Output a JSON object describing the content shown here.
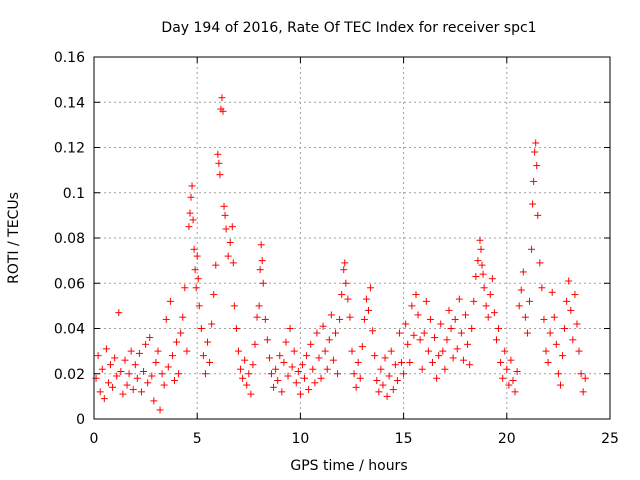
{
  "chart_data": {
    "type": "scatter",
    "title": "Day 194 of 2016, Rate Of TEC Index for receiver spc1",
    "xlabel": "GPS time / hours",
    "ylabel": "ROTI / TECUs",
    "xlim": [
      0,
      25
    ],
    "ylim": [
      0,
      0.16
    ],
    "xticks": [
      0,
      5,
      10,
      15,
      20,
      25
    ],
    "yticks": [
      0,
      0.02,
      0.04,
      0.06,
      0.08,
      0.1,
      0.12,
      0.14,
      0.16
    ],
    "xtick_labels": [
      "0",
      "5",
      "10",
      "15",
      "20",
      "25"
    ],
    "ytick_labels": [
      "0",
      "0.02",
      "0.04",
      "0.06",
      "0.08",
      "0.1",
      "0.12",
      "0.14",
      "0.16"
    ],
    "grid": true,
    "marker": "+",
    "color": "#ff0000",
    "series": [
      {
        "name": "ROTI",
        "points": [
          [
            0.1,
            0.018
          ],
          [
            0.2,
            0.028
          ],
          [
            0.3,
            0.012
          ],
          [
            0.4,
            0.022
          ],
          [
            0.5,
            0.009
          ],
          [
            0.6,
            0.031
          ],
          [
            0.7,
            0.016
          ],
          [
            0.8,
            0.024
          ],
          [
            0.9,
            0.014
          ],
          [
            1.0,
            0.027
          ],
          [
            1.1,
            0.019
          ],
          [
            1.2,
            0.047
          ],
          [
            1.3,
            0.021
          ],
          [
            1.4,
            0.011
          ],
          [
            1.5,
            0.026
          ],
          [
            1.6,
            0.015
          ],
          [
            1.7,
            0.02
          ],
          [
            1.8,
            0.03
          ],
          [
            1.9,
            0.013
          ],
          [
            2.0,
            0.024
          ],
          [
            2.1,
            0.018
          ],
          [
            2.2,
            0.029
          ],
          [
            2.3,
            0.012
          ],
          [
            2.4,
            0.021
          ],
          [
            2.5,
            0.033
          ],
          [
            2.6,
            0.016
          ],
          [
            2.7,
            0.036
          ],
          [
            2.8,
            0.019
          ],
          [
            2.9,
            0.008
          ],
          [
            3.0,
            0.025
          ],
          [
            3.1,
            0.03
          ],
          [
            3.2,
            0.004
          ],
          [
            3.3,
            0.02
          ],
          [
            3.4,
            0.015
          ],
          [
            3.5,
            0.044
          ],
          [
            3.6,
            0.023
          ],
          [
            3.7,
            0.052
          ],
          [
            3.8,
            0.028
          ],
          [
            3.9,
            0.017
          ],
          [
            4.0,
            0.034
          ],
          [
            4.1,
            0.02
          ],
          [
            4.2,
            0.038
          ],
          [
            4.3,
            0.045
          ],
          [
            4.4,
            0.058
          ],
          [
            4.5,
            0.03
          ],
          [
            4.6,
            0.085
          ],
          [
            4.65,
            0.091
          ],
          [
            4.7,
            0.098
          ],
          [
            4.75,
            0.103
          ],
          [
            4.8,
            0.088
          ],
          [
            4.85,
            0.075
          ],
          [
            4.9,
            0.066
          ],
          [
            4.95,
            0.058
          ],
          [
            5.0,
            0.072
          ],
          [
            5.05,
            0.062
          ],
          [
            5.1,
            0.05
          ],
          [
            5.2,
            0.04
          ],
          [
            5.3,
            0.028
          ],
          [
            5.4,
            0.02
          ],
          [
            5.5,
            0.034
          ],
          [
            5.6,
            0.025
          ],
          [
            5.7,
            0.042
          ],
          [
            5.8,
            0.055
          ],
          [
            5.9,
            0.068
          ],
          [
            6.0,
            0.117
          ],
          [
            6.05,
            0.113
          ],
          [
            6.1,
            0.108
          ],
          [
            6.15,
            0.137
          ],
          [
            6.2,
            0.142
          ],
          [
            6.25,
            0.136
          ],
          [
            6.3,
            0.094
          ],
          [
            6.35,
            0.09
          ],
          [
            6.4,
            0.084
          ],
          [
            6.5,
            0.072
          ],
          [
            6.6,
            0.078
          ],
          [
            6.7,
            0.085
          ],
          [
            6.75,
            0.069
          ],
          [
            6.8,
            0.05
          ],
          [
            6.9,
            0.04
          ],
          [
            7.0,
            0.03
          ],
          [
            7.1,
            0.022
          ],
          [
            7.2,
            0.018
          ],
          [
            7.3,
            0.026
          ],
          [
            7.4,
            0.015
          ],
          [
            7.5,
            0.02
          ],
          [
            7.6,
            0.011
          ],
          [
            7.7,
            0.024
          ],
          [
            7.8,
            0.033
          ],
          [
            7.9,
            0.045
          ],
          [
            8.0,
            0.05
          ],
          [
            8.05,
            0.066
          ],
          [
            8.1,
            0.077
          ],
          [
            8.15,
            0.07
          ],
          [
            8.2,
            0.06
          ],
          [
            8.3,
            0.044
          ],
          [
            8.4,
            0.035
          ],
          [
            8.5,
            0.027
          ],
          [
            8.6,
            0.02
          ],
          [
            8.7,
            0.014
          ],
          [
            8.8,
            0.022
          ],
          [
            8.9,
            0.017
          ],
          [
            9.0,
            0.028
          ],
          [
            9.1,
            0.012
          ],
          [
            9.2,
            0.025
          ],
          [
            9.3,
            0.034
          ],
          [
            9.4,
            0.019
          ],
          [
            9.5,
            0.04
          ],
          [
            9.6,
            0.023
          ],
          [
            9.7,
            0.03
          ],
          [
            9.8,
            0.016
          ],
          [
            9.9,
            0.021
          ],
          [
            10.0,
            0.011
          ],
          [
            10.1,
            0.024
          ],
          [
            10.2,
            0.018
          ],
          [
            10.3,
            0.028
          ],
          [
            10.4,
            0.013
          ],
          [
            10.5,
            0.033
          ],
          [
            10.6,
            0.022
          ],
          [
            10.7,
            0.016
          ],
          [
            10.8,
            0.038
          ],
          [
            10.9,
            0.027
          ],
          [
            11.0,
            0.018
          ],
          [
            11.1,
            0.041
          ],
          [
            11.2,
            0.03
          ],
          [
            11.3,
            0.022
          ],
          [
            11.4,
            0.035
          ],
          [
            11.5,
            0.046
          ],
          [
            11.6,
            0.026
          ],
          [
            11.7,
            0.038
          ],
          [
            11.8,
            0.02
          ],
          [
            11.9,
            0.044
          ],
          [
            12.0,
            0.055
          ],
          [
            12.1,
            0.066
          ],
          [
            12.15,
            0.069
          ],
          [
            12.2,
            0.06
          ],
          [
            12.3,
            0.053
          ],
          [
            12.4,
            0.045
          ],
          [
            12.5,
            0.03
          ],
          [
            12.6,
            0.02
          ],
          [
            12.7,
            0.014
          ],
          [
            12.8,
            0.025
          ],
          [
            12.9,
            0.018
          ],
          [
            13.0,
            0.032
          ],
          [
            13.1,
            0.044
          ],
          [
            13.2,
            0.053
          ],
          [
            13.3,
            0.048
          ],
          [
            13.4,
            0.058
          ],
          [
            13.5,
            0.039
          ],
          [
            13.6,
            0.028
          ],
          [
            13.7,
            0.017
          ],
          [
            13.8,
            0.012
          ],
          [
            13.9,
            0.022
          ],
          [
            14.0,
            0.015
          ],
          [
            14.1,
            0.027
          ],
          [
            14.2,
            0.01
          ],
          [
            14.3,
            0.019
          ],
          [
            14.4,
            0.03
          ],
          [
            14.5,
            0.013
          ],
          [
            14.6,
            0.024
          ],
          [
            14.7,
            0.017
          ],
          [
            14.8,
            0.038
          ],
          [
            14.9,
            0.025
          ],
          [
            15.0,
            0.02
          ],
          [
            15.1,
            0.042
          ],
          [
            15.2,
            0.033
          ],
          [
            15.3,
            0.025
          ],
          [
            15.4,
            0.05
          ],
          [
            15.5,
            0.037
          ],
          [
            15.6,
            0.055
          ],
          [
            15.7,
            0.046
          ],
          [
            15.8,
            0.035
          ],
          [
            15.9,
            0.022
          ],
          [
            16.0,
            0.038
          ],
          [
            16.1,
            0.052
          ],
          [
            16.2,
            0.03
          ],
          [
            16.3,
            0.044
          ],
          [
            16.4,
            0.025
          ],
          [
            16.5,
            0.036
          ],
          [
            16.6,
            0.018
          ],
          [
            16.7,
            0.028
          ],
          [
            16.8,
            0.042
          ],
          [
            16.9,
            0.03
          ],
          [
            17.0,
            0.022
          ],
          [
            17.1,
            0.035
          ],
          [
            17.2,
            0.048
          ],
          [
            17.3,
            0.04
          ],
          [
            17.4,
            0.027
          ],
          [
            17.5,
            0.044
          ],
          [
            17.6,
            0.031
          ],
          [
            17.7,
            0.053
          ],
          [
            17.8,
            0.038
          ],
          [
            17.9,
            0.026
          ],
          [
            18.0,
            0.046
          ],
          [
            18.1,
            0.033
          ],
          [
            18.2,
            0.024
          ],
          [
            18.3,
            0.04
          ],
          [
            18.4,
            0.052
          ],
          [
            18.5,
            0.063
          ],
          [
            18.6,
            0.07
          ],
          [
            18.7,
            0.079
          ],
          [
            18.75,
            0.075
          ],
          [
            18.8,
            0.068
          ],
          [
            18.85,
            0.064
          ],
          [
            18.9,
            0.058
          ],
          [
            19.0,
            0.05
          ],
          [
            19.1,
            0.045
          ],
          [
            19.2,
            0.055
          ],
          [
            19.3,
            0.062
          ],
          [
            19.4,
            0.047
          ],
          [
            19.5,
            0.035
          ],
          [
            19.6,
            0.04
          ],
          [
            19.7,
            0.025
          ],
          [
            19.8,
            0.018
          ],
          [
            19.9,
            0.03
          ],
          [
            20.0,
            0.022
          ],
          [
            20.1,
            0.015
          ],
          [
            20.2,
            0.026
          ],
          [
            20.3,
            0.017
          ],
          [
            20.4,
            0.012
          ],
          [
            20.5,
            0.021
          ],
          [
            20.6,
            0.05
          ],
          [
            20.7,
            0.057
          ],
          [
            20.8,
            0.065
          ],
          [
            20.9,
            0.045
          ],
          [
            21.0,
            0.038
          ],
          [
            21.1,
            0.052
          ],
          [
            21.2,
            0.075
          ],
          [
            21.25,
            0.095
          ],
          [
            21.3,
            0.105
          ],
          [
            21.35,
            0.118
          ],
          [
            21.4,
            0.122
          ],
          [
            21.45,
            0.112
          ],
          [
            21.5,
            0.09
          ],
          [
            21.6,
            0.069
          ],
          [
            21.7,
            0.058
          ],
          [
            21.8,
            0.044
          ],
          [
            21.9,
            0.03
          ],
          [
            22.0,
            0.025
          ],
          [
            22.1,
            0.038
          ],
          [
            22.2,
            0.056
          ],
          [
            22.3,
            0.045
          ],
          [
            22.4,
            0.033
          ],
          [
            22.5,
            0.02
          ],
          [
            22.6,
            0.015
          ],
          [
            22.7,
            0.028
          ],
          [
            22.8,
            0.04
          ],
          [
            22.9,
            0.052
          ],
          [
            23.0,
            0.061
          ],
          [
            23.1,
            0.048
          ],
          [
            23.2,
            0.035
          ],
          [
            23.3,
            0.055
          ],
          [
            23.4,
            0.042
          ],
          [
            23.5,
            0.03
          ],
          [
            23.6,
            0.02
          ],
          [
            23.7,
            0.012
          ],
          [
            23.8,
            0.018
          ]
        ]
      }
    ]
  }
}
